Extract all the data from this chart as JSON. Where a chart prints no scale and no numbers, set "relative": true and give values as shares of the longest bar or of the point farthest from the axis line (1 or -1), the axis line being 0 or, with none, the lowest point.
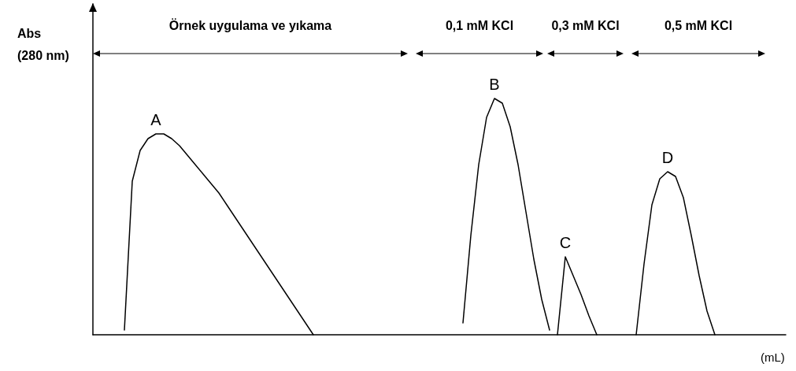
{
  "chart_data": {
    "type": "line",
    "relative": true,
    "ylabel": "Abs (280 nm)",
    "xlabel": "(mL)",
    "grid": false,
    "legend": false,
    "marker": "none",
    "line_style": "solid",
    "categories": [
      null,
      null,
      null,
      null,
      null,
      null,
      null,
      null,
      null,
      null,
      null,
      null,
      null,
      null,
      null,
      null,
      null,
      null,
      null,
      null,
      null,
      null,
      null,
      null,
      null,
      null,
      null,
      null,
      null,
      null,
      null,
      null,
      null,
      null,
      null,
      null,
      null,
      null,
      null,
      null,
      null,
      null,
      null,
      null,
      null,
      null,
      null,
      null,
      null,
      null,
      null,
      null,
      null,
      null,
      null,
      null,
      null,
      null,
      null,
      null,
      null,
      null,
      null,
      null,
      null,
      null,
      null,
      null,
      null,
      null,
      null,
      null,
      null,
      null,
      null,
      null,
      null,
      null,
      null,
      null,
      null,
      null,
      null,
      null,
      null,
      null,
      null,
      null,
      null
    ],
    "series": [
      {
        "name": "A",
        "color": "#000000",
        "values": [
          null,
          null,
          null,
          null,
          0.02,
          0.65,
          0.78,
          0.83,
          0.85,
          0.85,
          0.83,
          0.8,
          0.76,
          0.72,
          0.68,
          0.64,
          0.6,
          0.55,
          0.5,
          0.45,
          0.4,
          0.35,
          0.3,
          0.25,
          0.2,
          0.15,
          0.1,
          0.05,
          0,
          null,
          null,
          null,
          null,
          null,
          null,
          null,
          null,
          null,
          null,
          null,
          null,
          null,
          null,
          null,
          null,
          null,
          null,
          null,
          null,
          null,
          null,
          null,
          null,
          null,
          null,
          null,
          null,
          null,
          null,
          null,
          null,
          null,
          null,
          null,
          null,
          null,
          null,
          null,
          null,
          null,
          null,
          null,
          null,
          null,
          null,
          null,
          null,
          null,
          null,
          null,
          null,
          null,
          null,
          null,
          null,
          null,
          null,
          null,
          null
        ]
      },
      {
        "name": "B",
        "color": "#000000",
        "values": [
          null,
          null,
          null,
          null,
          null,
          null,
          null,
          null,
          null,
          null,
          null,
          null,
          null,
          null,
          null,
          null,
          null,
          null,
          null,
          null,
          null,
          null,
          null,
          null,
          null,
          null,
          null,
          null,
          null,
          null,
          null,
          null,
          null,
          null,
          null,
          null,
          null,
          null,
          null,
          null,
          null,
          null,
          null,
          null,
          null,
          null,
          null,
          0.05,
          0.42,
          0.72,
          0.92,
          1,
          0.98,
          0.88,
          0.72,
          0.52,
          0.32,
          0.15,
          0.02,
          null,
          null,
          null,
          null,
          null,
          null,
          null,
          null,
          null,
          null,
          null,
          null,
          null,
          null,
          null,
          null,
          null,
          null,
          null,
          null,
          null,
          null,
          null,
          null,
          null,
          null,
          null,
          null,
          null,
          null
        ]
      },
      {
        "name": "C",
        "color": "#000000",
        "values": [
          null,
          null,
          null,
          null,
          null,
          null,
          null,
          null,
          null,
          null,
          null,
          null,
          null,
          null,
          null,
          null,
          null,
          null,
          null,
          null,
          null,
          null,
          null,
          null,
          null,
          null,
          null,
          null,
          null,
          null,
          null,
          null,
          null,
          null,
          null,
          null,
          null,
          null,
          null,
          null,
          null,
          null,
          null,
          null,
          null,
          null,
          null,
          null,
          null,
          null,
          null,
          null,
          null,
          null,
          null,
          null,
          null,
          null,
          null,
          0,
          0.33,
          0.25,
          0.17,
          0.08,
          0,
          null,
          null,
          null,
          null,
          null,
          null,
          null,
          null,
          null,
          null,
          null,
          null,
          null,
          null,
          null,
          null,
          null,
          null,
          null,
          null,
          null,
          null,
          null,
          null
        ]
      },
      {
        "name": "D",
        "color": "#000000",
        "values": [
          null,
          null,
          null,
          null,
          null,
          null,
          null,
          null,
          null,
          null,
          null,
          null,
          null,
          null,
          null,
          null,
          null,
          null,
          null,
          null,
          null,
          null,
          null,
          null,
          null,
          null,
          null,
          null,
          null,
          null,
          null,
          null,
          null,
          null,
          null,
          null,
          null,
          null,
          null,
          null,
          null,
          null,
          null,
          null,
          null,
          null,
          null,
          null,
          null,
          null,
          null,
          null,
          null,
          null,
          null,
          null,
          null,
          null,
          null,
          null,
          null,
          null,
          null,
          null,
          null,
          null,
          null,
          null,
          null,
          0,
          0.3,
          0.55,
          0.66,
          0.69,
          0.67,
          0.58,
          0.42,
          0.25,
          0.1,
          0,
          null,
          null,
          null,
          null,
          null,
          null,
          null,
          null,
          null
        ]
      }
    ],
    "annotations": [
      "Örnek uygulama ve yıkama",
      "0,1 mM KCl",
      "0,3 mM KCl",
      "0,5 mM KCl"
    ]
  }
}
